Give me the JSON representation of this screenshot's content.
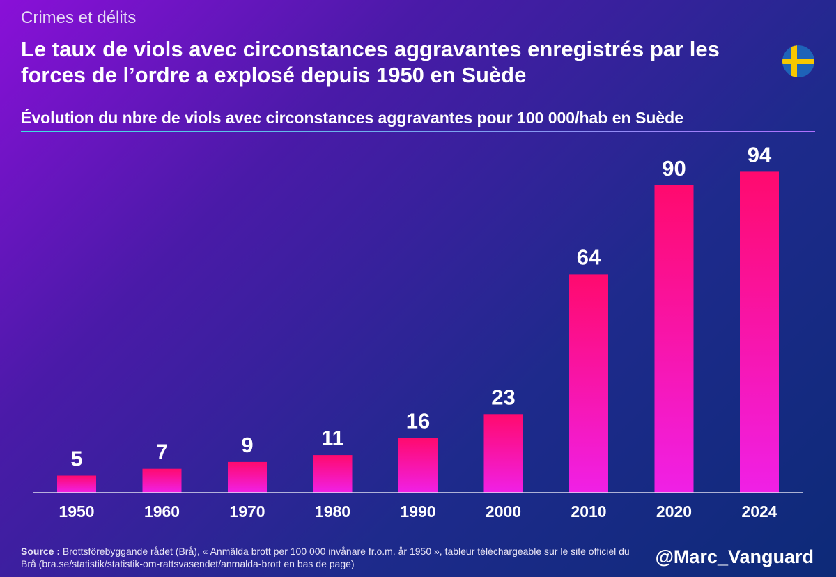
{
  "header": {
    "category": "Crimes et délits",
    "title": "Le taux de viols avec circonstances aggravantes enregistrés par les forces de l’ordre a explosé depuis 1950 en Suède",
    "flag_icon": "sweden-flag-icon"
  },
  "chart_data": {
    "type": "bar",
    "title": "Évolution du nbre de viols avec circonstances aggravantes pour 100 000/hab en Suède",
    "categories": [
      "1950",
      "1960",
      "1970",
      "1980",
      "1990",
      "2000",
      "2010",
      "2020",
      "2024"
    ],
    "values": [
      5,
      7,
      9,
      11,
      16,
      23,
      64,
      90,
      94
    ],
    "xlabel": "",
    "ylabel": "",
    "ylim": [
      0,
      100
    ],
    "grid": false,
    "data_labels": true,
    "colors": {
      "bar_top": "#ff0a6e",
      "bar_bottom": "#f020e6",
      "axis": "#e0e0f0"
    }
  },
  "footer": {
    "source_label": "Source :",
    "source_text": "Brottsförebyggande rådet (Brå), « Anmälda brott per 100 000 invånare fr.o.m. år 1950 », tableur téléchargeable sur le site officiel du Brå (bra.se/statistik/statistik-om-rattsvasendet/anmalda-brott en bas de page)",
    "handle": "@Marc_Vanguard"
  }
}
